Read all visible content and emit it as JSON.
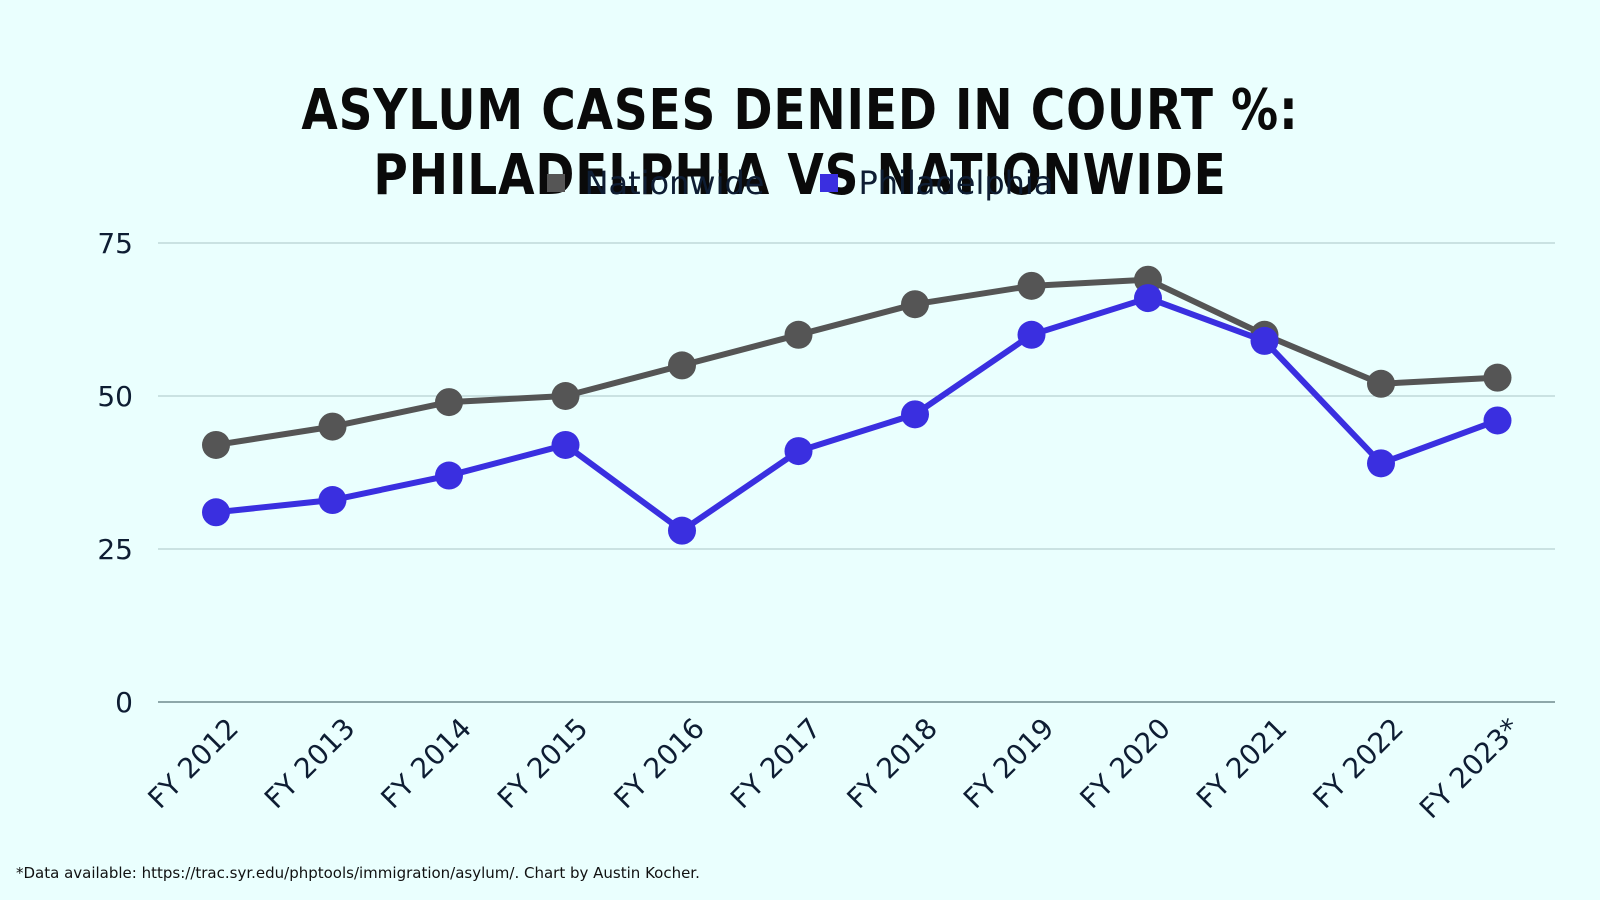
{
  "title": "ASYLUM CASES DENIED IN COURT %: PHILADELPHIA VS NATIONWIDE",
  "footnote": "*Data available: https://trac.syr.edu/phptools/immigration/asylum/. Chart by Austin Kocher.",
  "colors": {
    "background": "#eafffe",
    "nationwide": "#555555",
    "philadelphia": "#3a2fe0",
    "grid": "#a9c4c6"
  },
  "chart_data": {
    "type": "line",
    "title": "ASYLUM CASES DENIED IN COURT %: PHILADELPHIA VS NATIONWIDE",
    "xlabel": "",
    "ylabel": "",
    "categories": [
      "FY 2012",
      "FY 2013",
      "FY 2014",
      "FY 2015",
      "FY 2016",
      "FY 2017",
      "FY 2018",
      "FY 2019",
      "FY 2020",
      "FY 2021",
      "FY 2022",
      "FY 2023*"
    ],
    "series": [
      {
        "name": "Nationwide",
        "values": [
          42,
          45,
          49,
          50,
          55,
          60,
          65,
          68,
          69,
          60,
          52,
          53
        ]
      },
      {
        "name": "Philadelphia",
        "values": [
          31,
          33,
          37,
          42,
          28,
          41,
          47,
          60,
          66,
          59,
          39,
          46
        ]
      }
    ],
    "yticks": [
      0,
      25,
      50,
      75
    ],
    "ylim": [
      0,
      75
    ],
    "grid": true,
    "legend": "top-center"
  }
}
